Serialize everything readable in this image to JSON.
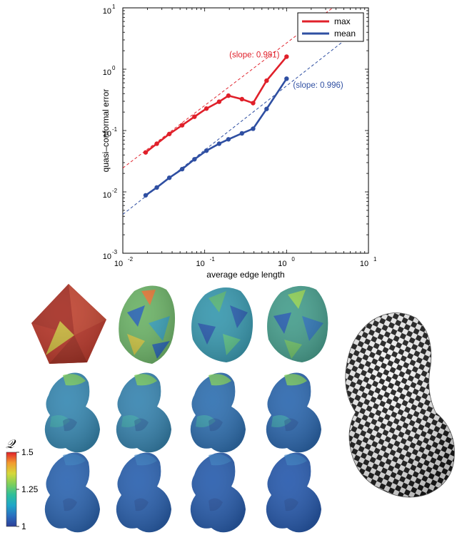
{
  "chart_data": {
    "type": "line",
    "xscale": "log",
    "yscale": "log",
    "xlim": [
      0.01,
      10
    ],
    "ylim": [
      0.001,
      10
    ],
    "xlabel": "average edge length",
    "ylabel": "quasi–conformal error",
    "x_tick_labels": [
      "10",
      "10",
      "10",
      "10"
    ],
    "x_tick_exponents": [
      "-2",
      "-1",
      "0",
      "1"
    ],
    "y_tick_labels": [
      "10",
      "10",
      "10",
      "10",
      "10"
    ],
    "y_tick_exponents": [
      "-3",
      "-2",
      "-1",
      "0",
      "1"
    ],
    "legend_position": "top-right",
    "series": [
      {
        "name": "max",
        "color": "#e0202a",
        "x": [
          0.019,
          0.026,
          0.037,
          0.053,
          0.075,
          0.105,
          0.15,
          0.195,
          0.285,
          0.39,
          0.57,
          1.0
        ],
        "y": [
          0.044,
          0.061,
          0.088,
          0.122,
          0.168,
          0.228,
          0.295,
          0.37,
          0.325,
          0.28,
          0.65,
          1.6
        ]
      },
      {
        "name": "mean",
        "color": "#2f4fa2",
        "x": [
          0.019,
          0.026,
          0.037,
          0.053,
          0.075,
          0.105,
          0.15,
          0.195,
          0.285,
          0.39,
          0.57,
          1.0
        ],
        "y": [
          0.0088,
          0.0118,
          0.017,
          0.0235,
          0.034,
          0.047,
          0.061,
          0.072,
          0.09,
          0.107,
          0.225,
          0.7
        ]
      }
    ],
    "fit_lines": [
      {
        "color": "#e0202a",
        "x": [
          0.01,
          3.65
        ],
        "y": [
          0.0245,
          10
        ],
        "annotation": "(slope: 0.981)",
        "label_at": [
          0.2,
          1.55
        ]
      },
      {
        "color": "#2f4fa2",
        "x": [
          0.01,
          6.0
        ],
        "y": [
          0.0043,
          3.5
        ],
        "annotation": "(slope: 0.996)",
        "label_at": [
          1.2,
          0.5
        ]
      }
    ]
  },
  "colorbar": {
    "title": "𝒬",
    "tick_labels": [
      "1.5",
      "1.25",
      "1"
    ],
    "tick_values": [
      1.5,
      1.25,
      1.0
    ],
    "range": [
      1.0,
      1.5
    ],
    "stops": [
      "#2c3d96",
      "#2a6fc0",
      "#1fa6c8",
      "#2fbf9a",
      "#7fcf5a",
      "#d6d83a",
      "#f29a2e",
      "#e0202a"
    ]
  },
  "renders": {
    "row_colors": [
      [
        "#b73b2e",
        "#6fb46a",
        "#3c9ab0",
        "#4aa08f"
      ],
      [
        "#3a8ab3",
        "#3a86b1",
        "#3272b2",
        "#2f6ab0"
      ],
      [
        "#2f67b2",
        "#2d63b0",
        "#2b5fae",
        "#2a5cae"
      ]
    ],
    "checker_colors": [
      "#1a1a1a",
      "#f2f2f2"
    ]
  }
}
